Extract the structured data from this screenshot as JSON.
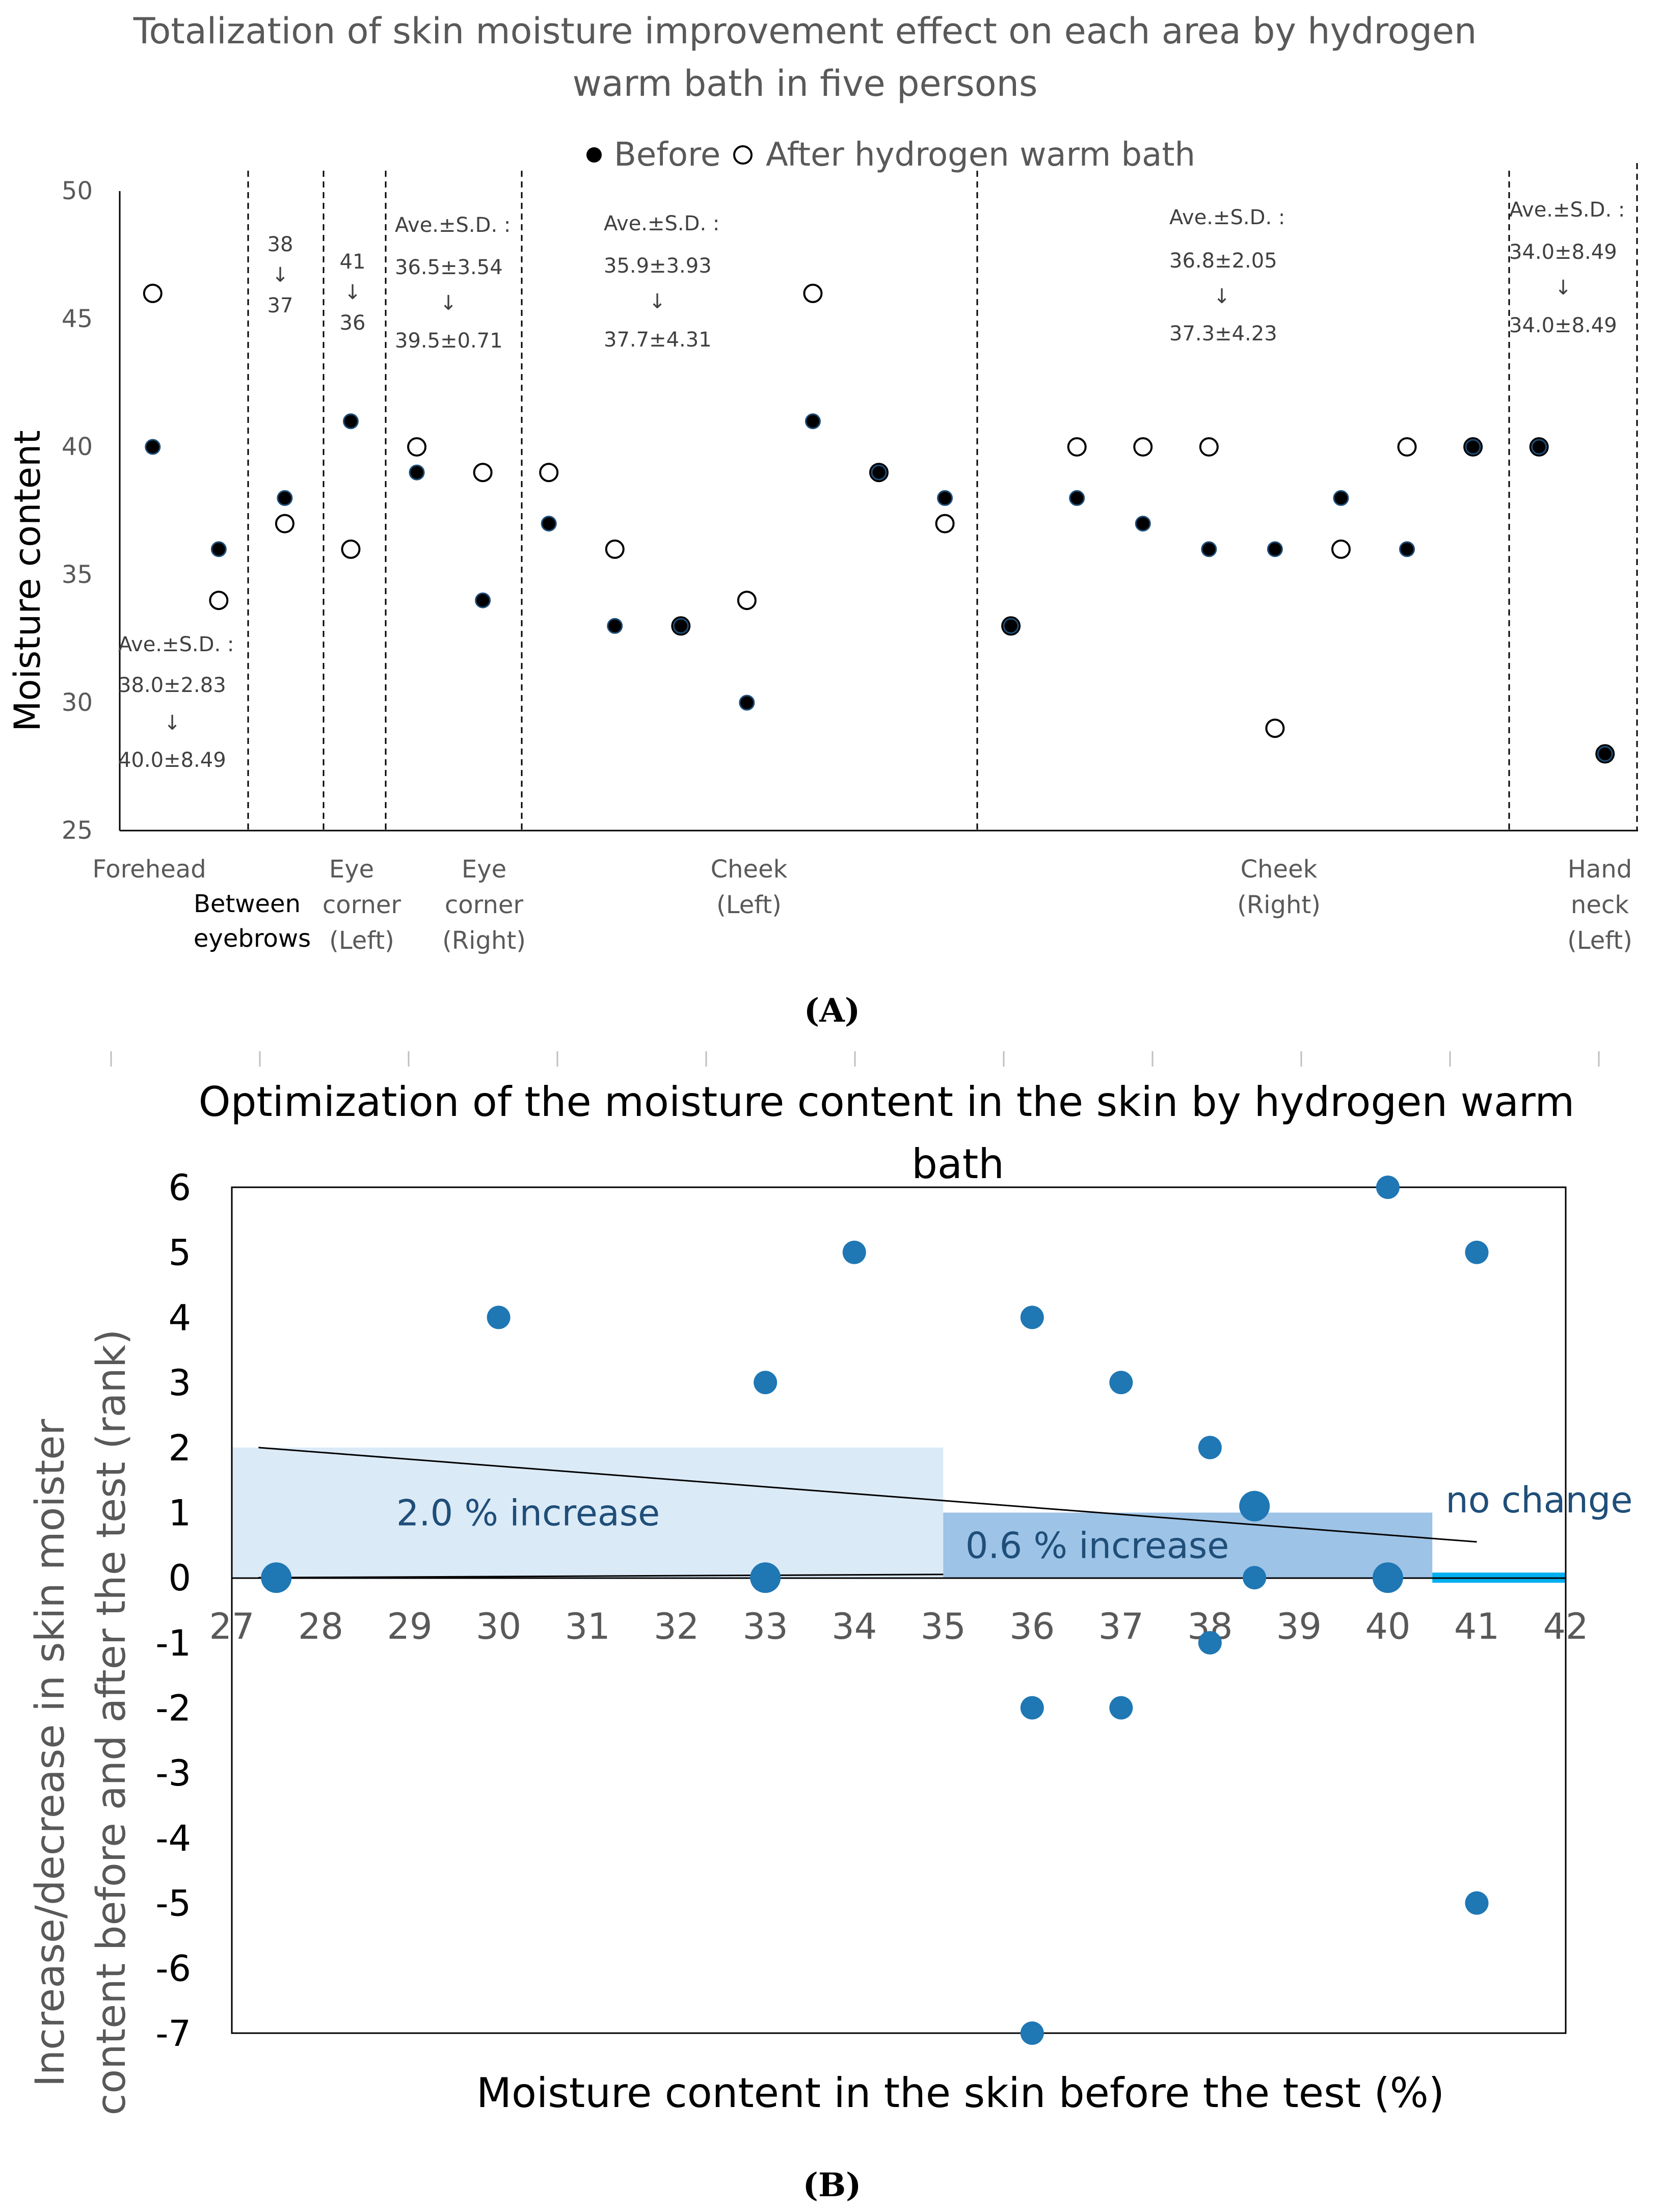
{
  "chart_data": [
    {
      "type": "scatter",
      "panel_label": "(A)",
      "title_lines": [
        "Totalization of skin moisture improvement effect on each area by hydrogen",
        "warm bath in five persons"
      ],
      "title": "Totalization of skin moisture improvement effect on each area by hydrogen warm bath in five persons",
      "legend_before": "Before",
      "legend_after": "After hydrogen warm bath",
      "ylabel": "Moisture content",
      "ylim": [
        25,
        50
      ],
      "yticks": [
        "25",
        "30",
        "35",
        "40",
        "45",
        "50"
      ],
      "area_labels": [
        {
          "lines": [
            "Forehead"
          ]
        },
        {
          "lines": [
            "Between",
            "eyebrows"
          ]
        },
        {
          "lines": [
            "Eye",
            "corner",
            "(Left)"
          ]
        },
        {
          "lines": [
            "Eye",
            "corner",
            "(Right)"
          ]
        },
        {
          "lines": [
            "Cheek",
            "(Left)"
          ]
        },
        {
          "lines": [
            "Cheek",
            "(Right)"
          ]
        },
        {
          "lines": [
            "Hand",
            "neck",
            "(Left)"
          ]
        }
      ],
      "annotations": [
        {
          "lines": [
            "Ave.±S.D. :",
            "38.0±2.83",
            "↓",
            "40.0±8.49"
          ]
        },
        {
          "lines": [
            "38",
            "↓",
            "37"
          ]
        },
        {
          "lines": [
            "41",
            "↓",
            "36"
          ]
        },
        {
          "lines": [
            "Ave.±S.D. :",
            "36.5±3.54",
            "↓",
            "39.5±0.71"
          ]
        },
        {
          "lines": [
            "Ave.±S.D. :",
            "35.9±3.93",
            "↓",
            "37.7±4.31"
          ]
        },
        {
          "lines": [
            "Ave.±S.D. :",
            "36.8±2.05",
            "↓",
            "37.3±4.23"
          ]
        },
        {
          "lines": [
            "Ave.±S.D. :",
            "34.0±8.49",
            "↓",
            "34.0±8.49"
          ]
        }
      ],
      "points": [
        {
          "before": 40,
          "after": 46
        },
        {
          "before": 36,
          "after": 34
        },
        {
          "before": 38,
          "after": 37
        },
        {
          "before": 41,
          "after": 36
        },
        {
          "before": 39,
          "after": 40
        },
        {
          "before": 34,
          "after": 39
        },
        {
          "before": 37,
          "after": 39
        },
        {
          "before": 33,
          "after": 36
        },
        {
          "before": 33,
          "after": 33
        },
        {
          "before": 30,
          "after": 34
        },
        {
          "before": 41,
          "after": 46
        },
        {
          "before": 39,
          "after": 39
        },
        {
          "before": 38,
          "after": 37
        },
        {
          "before": 33,
          "after": 33
        },
        {
          "before": 38,
          "after": 40
        },
        {
          "before": 37,
          "after": 40
        },
        {
          "before": 36,
          "after": 40
        },
        {
          "before": 36,
          "after": 29
        },
        {
          "before": 38,
          "after": 36
        },
        {
          "before": 36,
          "after": 40
        },
        {
          "before": 40,
          "after": 40
        },
        {
          "before": 40,
          "after": 40
        },
        {
          "before": 28,
          "after": 28
        }
      ]
    },
    {
      "type": "scatter",
      "panel_label": "(B)",
      "title_lines": [
        "Optimization of the moisture content in the skin by hydrogen warm",
        "bath"
      ],
      "title": "Optimization of the moisture content in the skin by hydrogen warm bath",
      "xlabel": "Moisture content in the skin before the test (%)",
      "ylabel_lines": [
        "Increase/decrease in skin moister",
        "content before and after the test (rank)"
      ],
      "xlim": [
        27,
        42
      ],
      "ylim": [
        -7,
        6
      ],
      "xticks": [
        "27",
        "28",
        "29",
        "30",
        "31",
        "32",
        "33",
        "34",
        "35",
        "36",
        "37",
        "38",
        "39",
        "40",
        "41",
        "42"
      ],
      "yticks": [
        "-7",
        "-6",
        "-5",
        "-4",
        "-3",
        "-2",
        "-1",
        "0",
        "1",
        "2",
        "3",
        "4",
        "5",
        "6"
      ],
      "regions": [
        {
          "label": "2.0 % increase",
          "x": [
            27,
            35
          ],
          "y": [
            0,
            2
          ],
          "color": "#dbeaf7"
        },
        {
          "label": "0.6 % increase",
          "x": [
            35,
            40.5
          ],
          "y": [
            0,
            1
          ],
          "color": "#9dc3e6"
        },
        {
          "label": "no change",
          "x": [
            40.5,
            42
          ],
          "y": [
            0,
            0
          ],
          "color": "#00b0f0"
        }
      ],
      "trendlines": [
        {
          "x": [
            27.3,
            41
          ],
          "y": [
            2,
            0.55
          ]
        },
        {
          "x": [
            27.3,
            35
          ],
          "y": [
            0,
            0.05
          ]
        }
      ],
      "points": [
        {
          "x": 27.5,
          "y": 0,
          "size": "large"
        },
        {
          "x": 30,
          "y": 4
        },
        {
          "x": 33,
          "y": 3
        },
        {
          "x": 33,
          "y": 0,
          "size": "large"
        },
        {
          "x": 34,
          "y": 5
        },
        {
          "x": 36,
          "y": 4
        },
        {
          "x": 36,
          "y": -2
        },
        {
          "x": 36,
          "y": -7
        },
        {
          "x": 37,
          "y": 3
        },
        {
          "x": 37,
          "y": -2
        },
        {
          "x": 38,
          "y": 2
        },
        {
          "x": 38,
          "y": -1
        },
        {
          "x": 38.5,
          "y": 1.1,
          "size": "large"
        },
        {
          "x": 38.5,
          "y": 0
        },
        {
          "x": 40,
          "y": 6
        },
        {
          "x": 40,
          "y": 0,
          "size": "large"
        },
        {
          "x": 41,
          "y": 5
        },
        {
          "x": 41,
          "y": -5
        }
      ],
      "marker_color": "#1f77b4"
    }
  ]
}
